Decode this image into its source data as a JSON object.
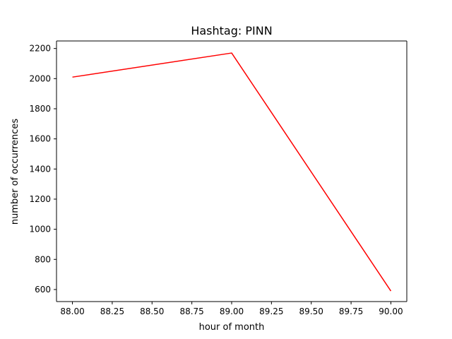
{
  "chart_data": {
    "type": "line",
    "title": "Hashtag: PINN",
    "xlabel": "hour of month",
    "ylabel": "number of occurrences",
    "x": [
      88,
      89,
      90
    ],
    "series": [
      {
        "values": [
          2010,
          2170,
          590
        ],
        "color": "#ff0000"
      }
    ],
    "xlim": [
      87.9,
      90.1
    ],
    "ylim": [
      520,
      2250
    ],
    "xticks": [
      88.0,
      88.25,
      88.5,
      88.75,
      89.0,
      89.25,
      89.5,
      89.75,
      90.0
    ],
    "xtick_labels": [
      "88.00",
      "88.25",
      "88.50",
      "88.75",
      "89.00",
      "89.25",
      "89.50",
      "89.75",
      "90.00"
    ],
    "yticks": [
      600,
      800,
      1000,
      1200,
      1400,
      1600,
      1800,
      2000,
      2200
    ],
    "ytick_labels": [
      "600",
      "800",
      "1000",
      "1200",
      "1400",
      "1600",
      "1800",
      "2000",
      "2200"
    ],
    "grid": false,
    "legend": "none"
  }
}
